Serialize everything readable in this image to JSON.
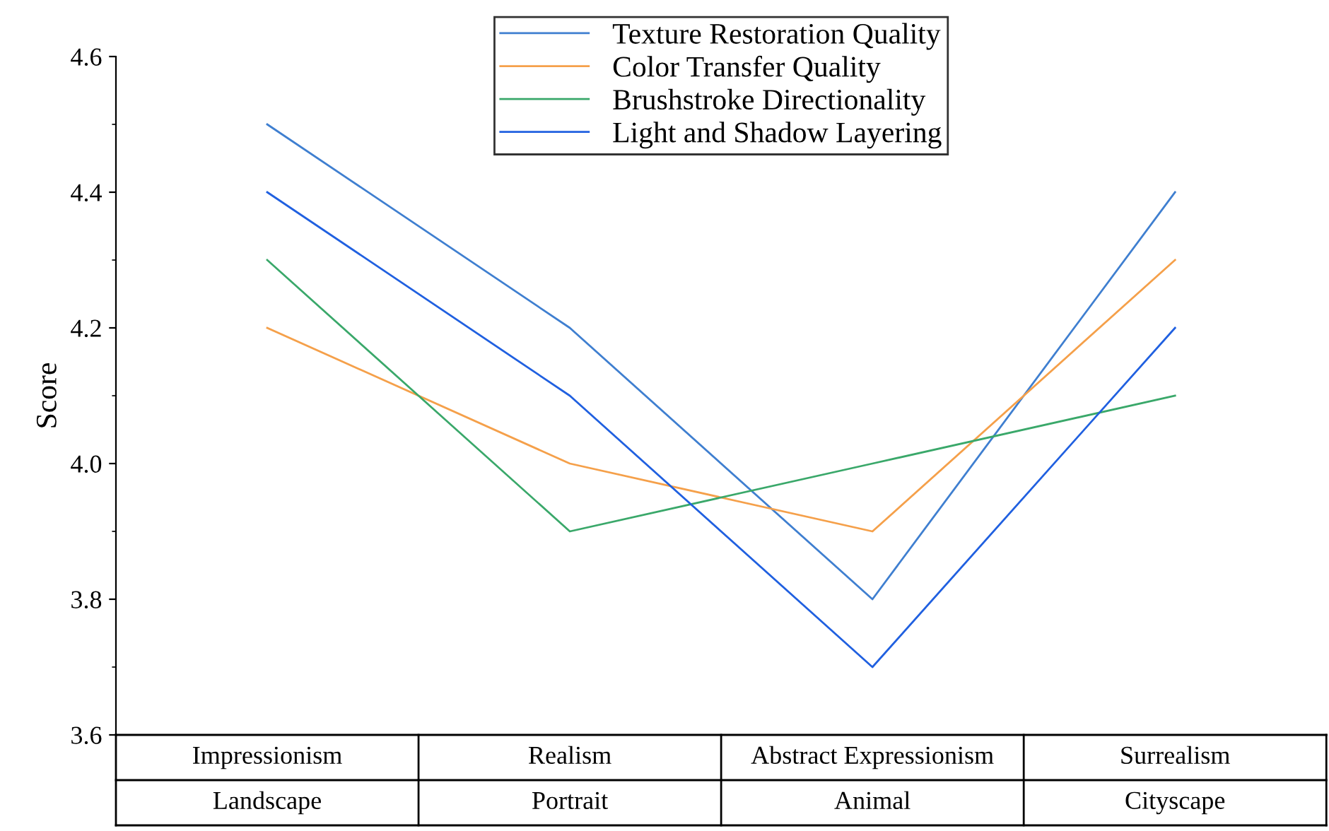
{
  "chart_data": {
    "type": "line",
    "ylabel": "Score",
    "categories": [
      "Impressionism\nLandscape",
      "Realism\nPortrait",
      "Abstract Expressionism\nAnimal",
      "Surrealism\nCityscape"
    ],
    "series": [
      {
        "name": "Texture Restoration Quality",
        "color": "#3f7fd0",
        "values": [
          4.5,
          4.2,
          3.8,
          4.4
        ]
      },
      {
        "name": "Color Transfer Quality",
        "color": "#f5a04a",
        "values": [
          4.2,
          4.0,
          3.9,
          4.3
        ]
      },
      {
        "name": "Brushstroke Directionality",
        "color": "#3aa86a",
        "values": [
          4.3,
          3.9,
          4.0,
          4.1
        ]
      },
      {
        "name": "Light and Shadow Layering",
        "color": "#2060e0",
        "values": [
          4.4,
          4.1,
          3.7,
          4.2
        ]
      }
    ],
    "ylim": [
      3.6,
      4.6
    ],
    "yticks": [
      3.6,
      3.8,
      {
        "value": 4,
        "label": "4.0"
      },
      4.2,
      4.4,
      4.6
    ],
    "grid": false,
    "legend": "top",
    "line_style": "solid"
  }
}
